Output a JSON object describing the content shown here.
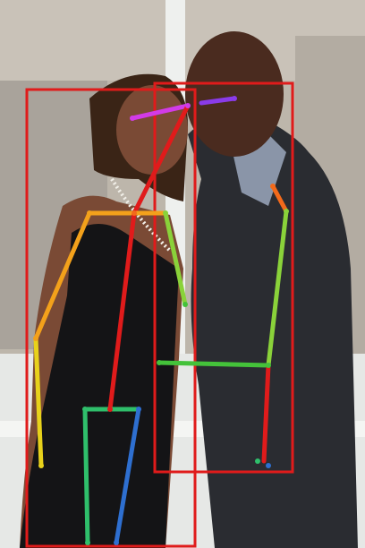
{
  "image": {
    "description_hidden": "",
    "colors": {
      "wall": "#b9b1a6",
      "wall_light": "#d7d2ca",
      "window_glass": "#9aa4a6",
      "window_frame": "#f3f3f0",
      "floor": "#e9ebe8",
      "skin_woman": "#7a4a35",
      "skin_man": "#4a2b1f",
      "dress": "#141416",
      "suit": "#2a2c31",
      "shirt": "#8a95a8",
      "hair_woman": "#3a2416"
    }
  },
  "overlay": {
    "box_color": "#e01b1b",
    "people": [
      {
        "id": "left-person",
        "keypoint_color_arms": "#f3a11b",
        "keypoint_color_legs": "#2e6fd0"
      },
      {
        "id": "right-person",
        "keypoint_color_arms": "#44c23a",
        "keypoint_color_legs": "#2e6fd0"
      }
    ]
  }
}
